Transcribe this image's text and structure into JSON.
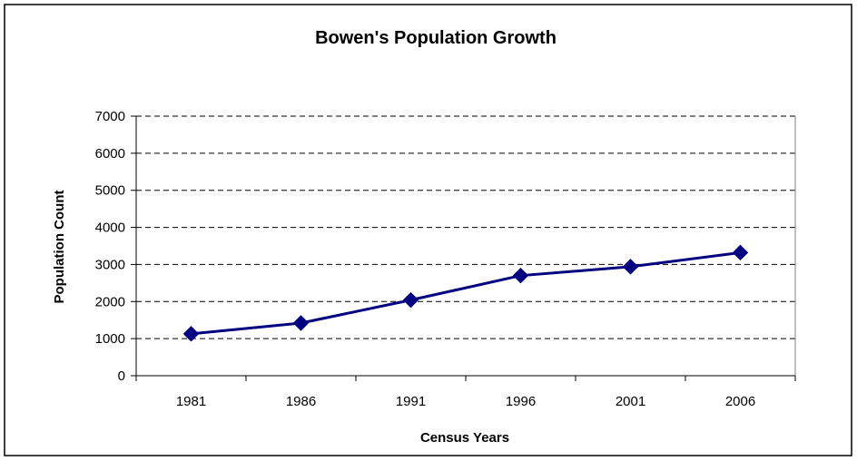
{
  "chart_data": {
    "type": "line",
    "title": "Bowen's Population Growth",
    "xlabel": "Census Years",
    "ylabel": "Population Count",
    "categories": [
      "1981",
      "1986",
      "1991",
      "1996",
      "2001",
      "2006"
    ],
    "series": [
      {
        "values": [
          1130,
          1420,
          2040,
          2700,
          2940,
          3320
        ]
      }
    ],
    "ylim": [
      0,
      7000
    ],
    "yticks": [
      "0",
      "1000",
      "2000",
      "3000",
      "4000",
      "5000",
      "6000",
      "7000"
    ],
    "grid": {
      "y": true,
      "x": false,
      "style": "dashed"
    },
    "legend": "none",
    "colors": {
      "series": "#000080",
      "grid": "#000000",
      "axis": "#808080",
      "border": "#000000"
    }
  }
}
